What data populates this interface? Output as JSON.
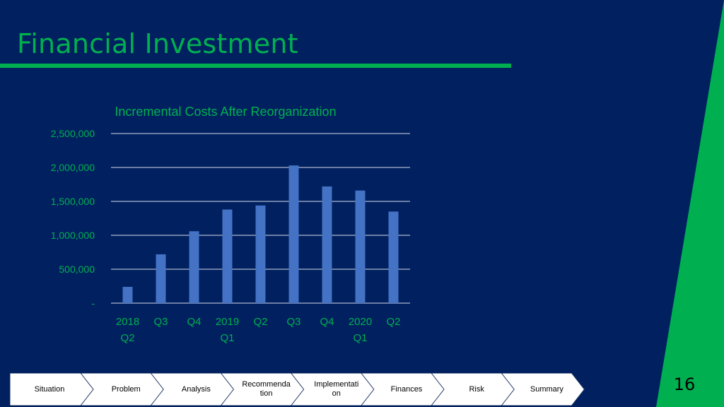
{
  "slide": {
    "title": "Financial Investment",
    "page_number": "16"
  },
  "colors": {
    "background": "#002060",
    "accent_green": "#00B050",
    "bar_fill": "#4472C4",
    "gridline": "#FFFFFF",
    "nav_fill": "#FFFFFF",
    "nav_border": "#1F3864"
  },
  "chart_data": {
    "type": "bar",
    "title": "Incremental Costs After Reorganization",
    "categories": [
      [
        "2018",
        "Q2"
      ],
      [
        "Q3"
      ],
      [
        "Q4"
      ],
      [
        "2019",
        "Q1"
      ],
      [
        "Q2"
      ],
      [
        "Q3"
      ],
      [
        "Q4"
      ],
      [
        "2020",
        "Q1"
      ],
      [
        "Q2"
      ]
    ],
    "values": [
      240000,
      720000,
      1060000,
      1380000,
      1440000,
      2030000,
      1720000,
      1660000,
      1350000
    ],
    "ylim": [
      0,
      2500000
    ],
    "yticks": [
      0,
      500000,
      1000000,
      1500000,
      2000000,
      2500000
    ],
    "ytick_labels": [
      "-",
      "500,000",
      "1,000,000",
      "1,500,000",
      "2,000,000",
      "2,500,000"
    ],
    "grid": true,
    "legend": "none"
  },
  "nav": {
    "items": [
      {
        "label": "Situation"
      },
      {
        "label": "Problem"
      },
      {
        "label": "Analysis"
      },
      {
        "label": "Recommenda\ntion"
      },
      {
        "label": "Implementati\non"
      },
      {
        "label": "Finances"
      },
      {
        "label": "Risk"
      },
      {
        "label": "Summary"
      }
    ]
  }
}
